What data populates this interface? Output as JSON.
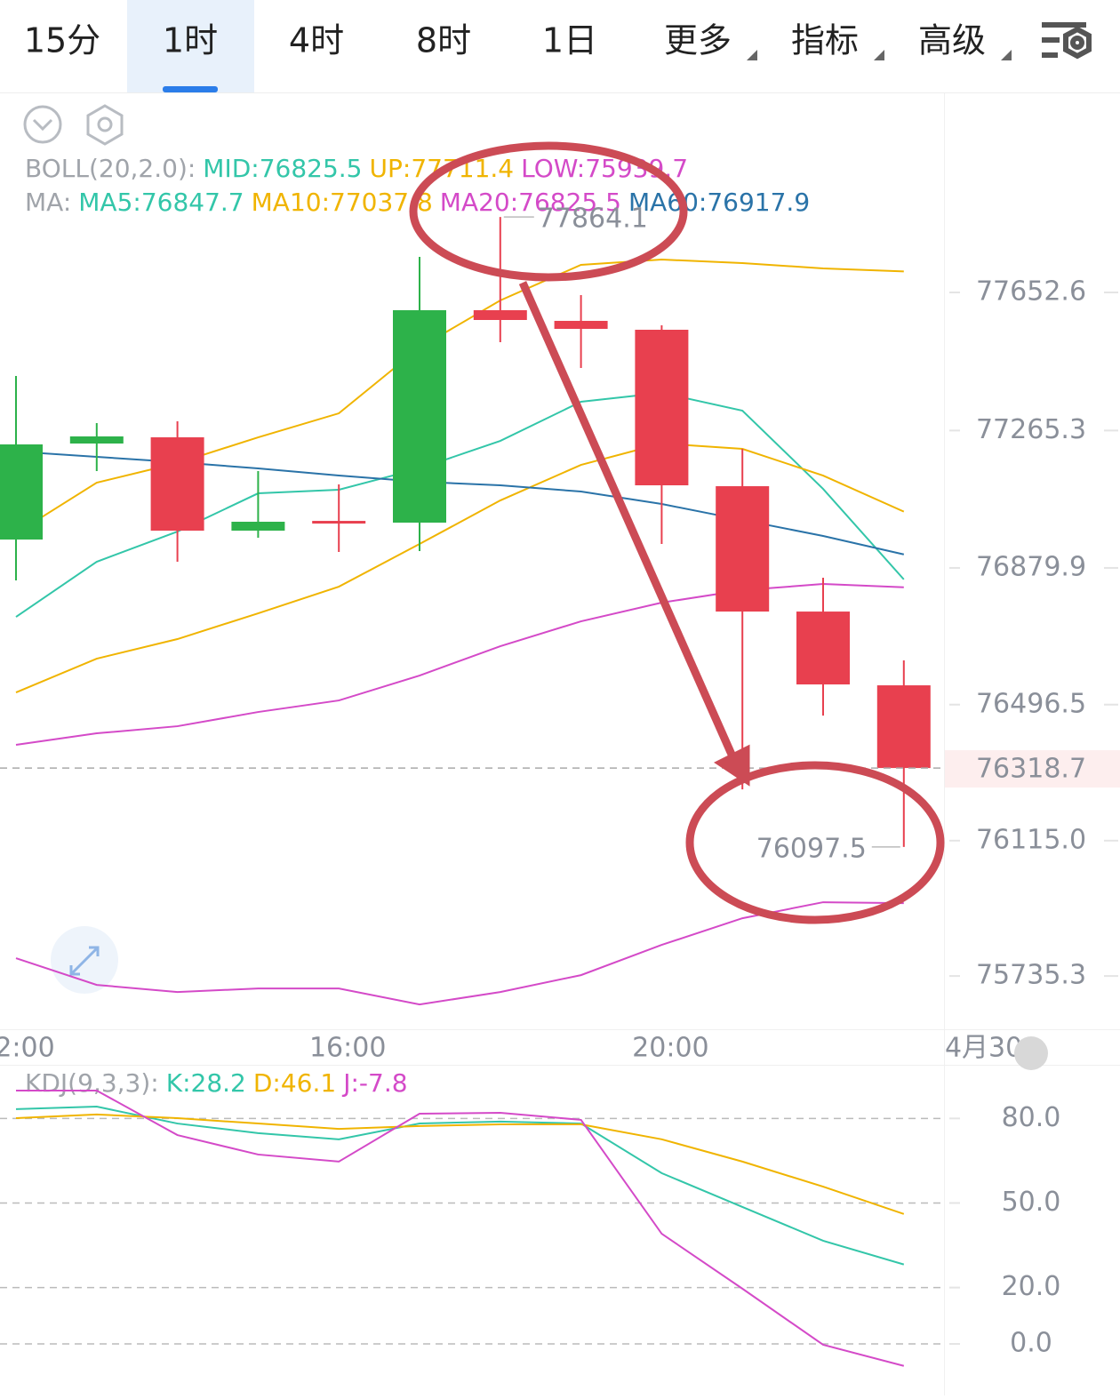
{
  "tabs": {
    "items": [
      "15分",
      "1时",
      "4时",
      "8时",
      "1日",
      "更多",
      "指标",
      "高级"
    ],
    "selected": 1
  },
  "chart_data": [
    {
      "type": "candlestick",
      "boll_legend": {
        "prefix": "BOLL(20,2.0):",
        "items": [
          {
            "text": "MID:76825.5",
            "color": "#33c6a9"
          },
          {
            "text": "UP:77711.4",
            "color": "#f0b400"
          },
          {
            "text": "LOW:75939.7",
            "color": "#d44ac8"
          }
        ]
      },
      "ma_legend": {
        "prefix": "MA:",
        "items": [
          {
            "text": "MA5:76847.7",
            "color": "#33c6a9"
          },
          {
            "text": "MA10:77037.8",
            "color": "#f0b400"
          },
          {
            "text": "MA20:76825.5",
            "color": "#d44ac8"
          },
          {
            "text": "MA60:76917.9",
            "color": "#2a73a8"
          }
        ]
      },
      "categories": [
        "2:00",
        null,
        null,
        null,
        "16:00",
        null,
        null,
        null,
        "20:00",
        null,
        null,
        null
      ],
      "next_label": "4月30",
      "up_color": "#2db24a",
      "down_color": "#e8404f",
      "candles": [
        {
          "open": 76959.5,
          "high": 77418.2,
          "low": 76844.8,
          "close": 77226.3
        },
        {
          "open": 77228.8,
          "high": 77286.1,
          "low": 77151.5,
          "close": 77248.7
        },
        {
          "open": 77246.2,
          "high": 77291.1,
          "low": 76897.2,
          "close": 76984.4
        },
        {
          "open": 76984.4,
          "high": 77151.5,
          "low": 76964.5,
          "close": 77009.4
        },
        {
          "open": 77011.8,
          "high": 77114.1,
          "low": 76924.6,
          "close": 77006.9
        },
        {
          "open": 77006.9,
          "high": 77752.3,
          "low": 76927.1,
          "close": 77602.7
        },
        {
          "open": 77602.7,
          "high": 77864.1,
          "low": 77513.0,
          "close": 77575.3
        },
        {
          "open": 77572.8,
          "high": 77645.1,
          "low": 77440.7,
          "close": 77550.4
        },
        {
          "open": 77547.9,
          "high": 77560.4,
          "low": 76947.0,
          "close": 77111.6
        },
        {
          "open": 77109.1,
          "high": 77213.8,
          "low": 76258.9,
          "close": 76757.5
        },
        {
          "open": 76757.5,
          "high": 76852.3,
          "low": 76465.8,
          "close": 76553.1
        },
        {
          "open": 76550.6,
          "high": 76620.4,
          "low": 76097.5,
          "close": 76318.7
        }
      ],
      "lines": [
        {
          "color": "#33c6a9",
          "values": [
            76742.6,
            76897.2,
            76981.9,
            77089.1,
            77099.1,
            77158.9,
            77236.2,
            77345.9,
            77370.9,
            77321.0,
            77101.6,
            76847.7
          ]
        },
        {
          "color": "#f0b400",
          "values": [
            76530.7,
            76625.4,
            76680.3,
            76752.6,
            76827.4,
            76947.0,
            77069.2,
            77168.9,
            77228.8,
            77213.8,
            77139.0,
            77037.8
          ]
        },
        {
          "color": "#d44ac8",
          "values": [
            76383.6,
            76416.0,
            76435.9,
            76475.8,
            76508.2,
            76578.0,
            76660.3,
            76730.1,
            76782.5,
            76817.4,
            76834.8,
            76825.5
          ]
        },
        {
          "color": "#2a73a8",
          "values": [
            77206.3,
            77191.4,
            77176.4,
            77158.9,
            77139.0,
            77121.5,
            77111.6,
            77094.1,
            77059.2,
            77014.3,
            76969.5,
            76917.9
          ]
        },
        {
          "color": "#f0b400",
          "values": [
            76976.9,
            77119.1,
            77173.9,
            77246.2,
            77313.5,
            77498.0,
            77630.2,
            77729.9,
            77744.8,
            77734.9,
            77719.9,
            77711.4
          ]
        },
        {
          "color": "#d44ac8",
          "values": [
            75785.2,
            75710.4,
            75690.5,
            75700.4,
            75700.4,
            75655.5,
            75690.5,
            75737.8,
            75822.6,
            75897.4,
            75942.3,
            75939.7
          ]
        }
      ],
      "last_price": 76318.7,
      "ylim": [
        75586,
        78211
      ],
      "yticks": [
        77652.6,
        77265.3,
        76879.9,
        76496.5,
        {
          "value": 76115,
          "label": "76115.0"
        },
        75735.3
      ]
    },
    {
      "type": "line",
      "legend": {
        "prefix": "KDJ(9,3,3):",
        "items": [
          {
            "text": "K:28.2",
            "color": "#33c6a9"
          },
          {
            "text": "D:46.1",
            "color": "#f0b400"
          },
          {
            "text": "J:-7.8",
            "color": "#d44ac8"
          }
        ]
      },
      "series": [
        {
          "color": "#33c6a9",
          "values": [
            83.3,
            84.2,
            78.2,
            74.8,
            72.6,
            78.2,
            78.9,
            78.2,
            60.6,
            48.6,
            36.6,
            28.2
          ]
        },
        {
          "color": "#f0b400",
          "values": [
            80.1,
            81.4,
            80.1,
            78.2,
            76.3,
            77.3,
            77.9,
            77.9,
            72.6,
            64.7,
            55.8,
            46.1
          ]
        },
        {
          "color": "#d44ac8",
          "values": [
            89.9,
            89.9,
            74.1,
            67.2,
            64.7,
            81.7,
            82.0,
            79.5,
            39.1,
            19.6,
            -0.3,
            -7.8
          ]
        }
      ],
      "ylim": [
        -16.7,
        98.4
      ],
      "yticks": [
        {
          "value": 80,
          "label": "80.0"
        },
        {
          "value": 50,
          "label": "50.0"
        },
        {
          "value": 20,
          "label": "20.0"
        },
        {
          "value": 0,
          "label": "0.0"
        }
      ],
      "grid": true
    }
  ]
}
